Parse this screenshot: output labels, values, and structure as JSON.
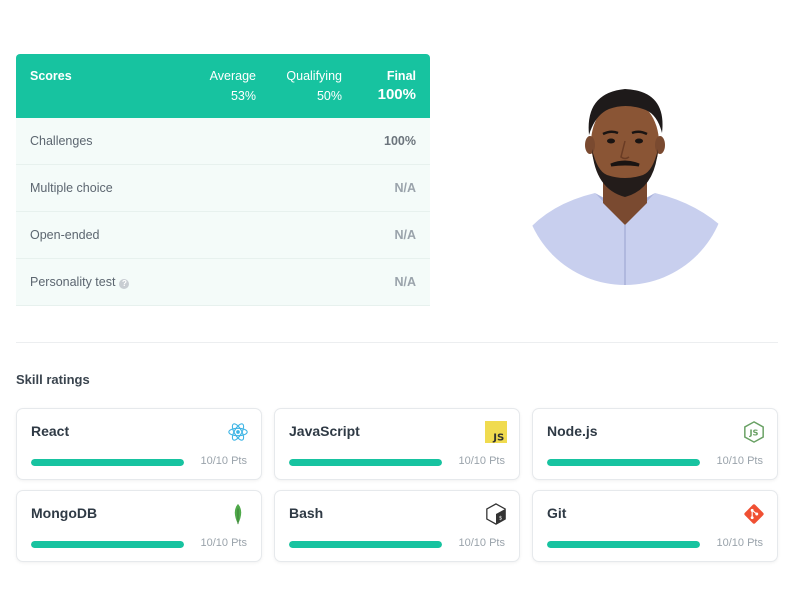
{
  "scores": {
    "title": "Scores",
    "average": {
      "label": "Average",
      "value": "53%"
    },
    "qualifying": {
      "label": "Qualifying",
      "value": "50%"
    },
    "final": {
      "label": "Final",
      "value": "100%"
    },
    "rows": [
      {
        "label": "Challenges",
        "value": "100%"
      },
      {
        "label": "Multiple choice",
        "value": "N/A"
      },
      {
        "label": "Open-ended",
        "value": "N/A"
      },
      {
        "label": "Personality test",
        "value": "N/A"
      }
    ],
    "help_glyph": "?"
  },
  "skills": {
    "title": "Skill ratings",
    "items": [
      {
        "name": "React",
        "points": "10/10 Pts",
        "progress": 1.0,
        "icon": "react-icon"
      },
      {
        "name": "JavaScript",
        "points": "10/10 Pts",
        "progress": 1.0,
        "icon": "javascript-icon"
      },
      {
        "name": "Node.js",
        "points": "10/10 Pts",
        "progress": 1.0,
        "icon": "nodejs-icon"
      },
      {
        "name": "MongoDB",
        "points": "10/10 Pts",
        "progress": 1.0,
        "icon": "mongodb-icon"
      },
      {
        "name": "Bash",
        "points": "10/10 Pts",
        "progress": 1.0,
        "icon": "bash-icon"
      },
      {
        "name": "Git",
        "points": "10/10 Pts",
        "progress": 1.0,
        "icon": "git-icon"
      }
    ]
  },
  "colors": {
    "accent": "#17c3a0",
    "row_bg": "#f4fbf9"
  }
}
